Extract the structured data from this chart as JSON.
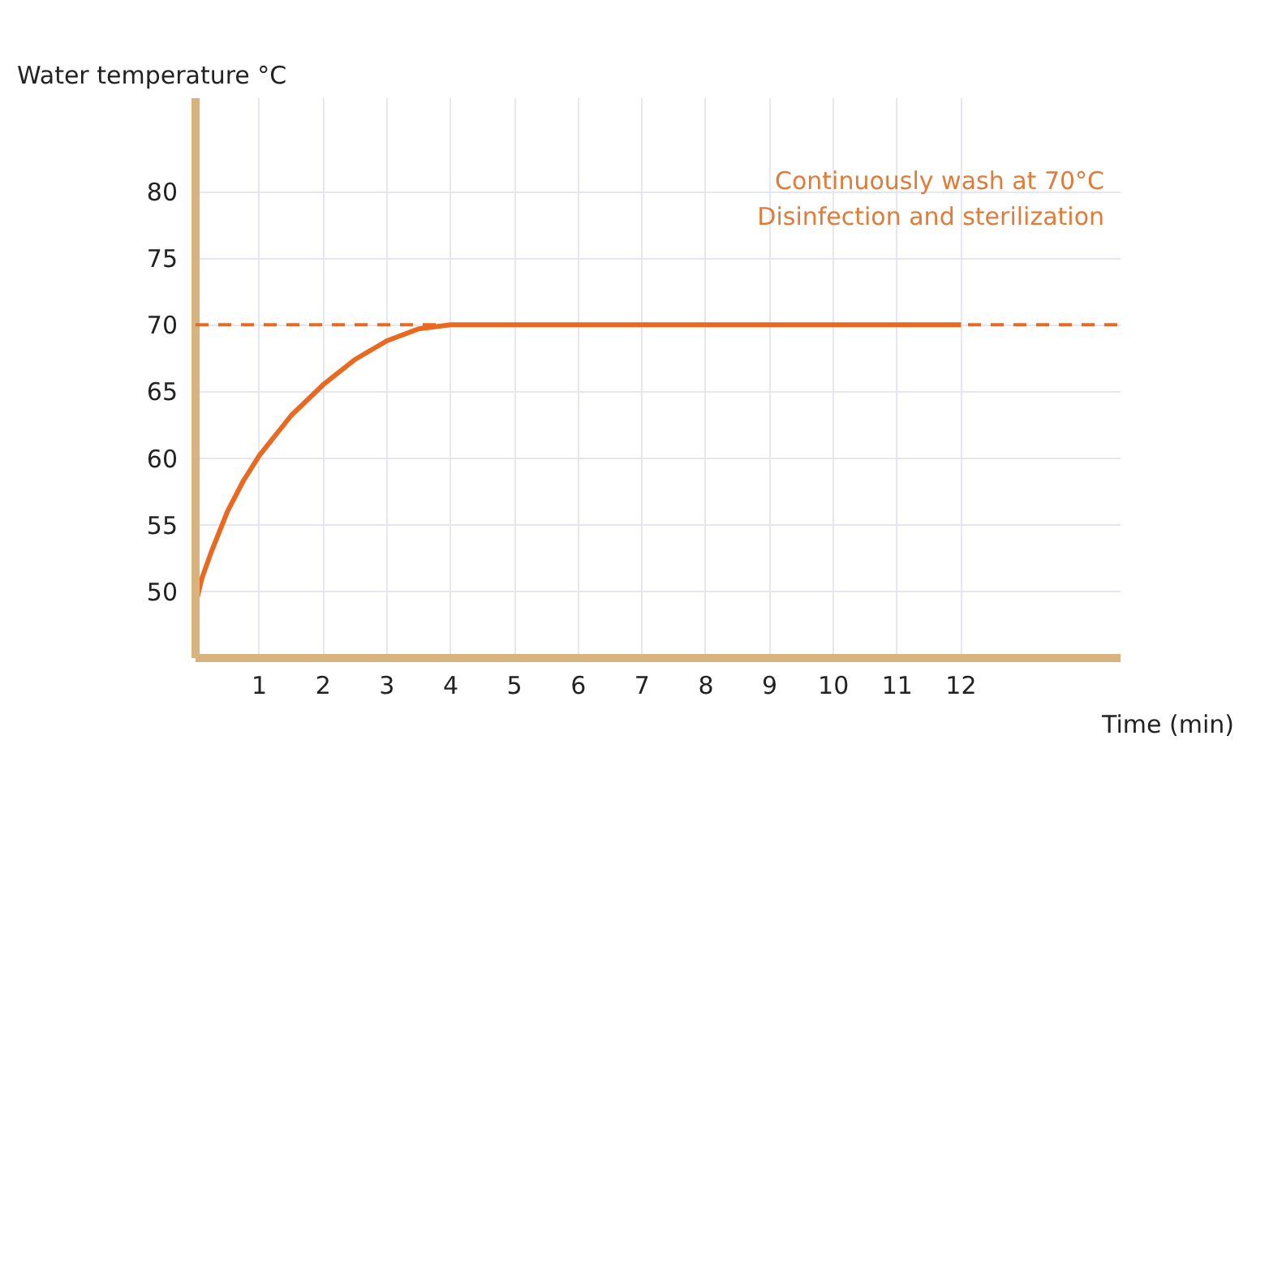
{
  "chart_data": {
    "type": "line",
    "ylabel": "Water temperature °C",
    "xlabel": "Time (min)",
    "x": [
      0,
      0.1,
      0.25,
      0.5,
      0.75,
      1,
      1.5,
      2,
      2.5,
      3,
      3.5,
      4,
      5,
      6,
      7,
      8,
      9,
      10,
      11,
      12
    ],
    "series": [
      {
        "color": "#e8691f",
        "values": [
          49,
          51,
          53,
          56,
          58.3,
          60.2,
          63.2,
          65.5,
          67.4,
          68.8,
          69.7,
          70,
          70,
          70,
          70,
          70,
          70,
          70,
          70,
          70
        ]
      }
    ],
    "xlim": [
      0,
      14.5
    ],
    "xticks": [
      1,
      2,
      3,
      4,
      5,
      6,
      7,
      8,
      9,
      10,
      11,
      12
    ],
    "ylim": [
      45,
      87
    ],
    "yticks": [
      50,
      55,
      60,
      65,
      70,
      75,
      80
    ],
    "grid": true,
    "marker": "none",
    "line_style": "solid",
    "ref_lines": [
      {
        "axis": "y",
        "value": 70,
        "color": "#e8691f",
        "line_style": "dashed"
      }
    ],
    "annotations": [
      "Continuously wash at 70°C",
      "Disinfection and sterilization"
    ]
  }
}
